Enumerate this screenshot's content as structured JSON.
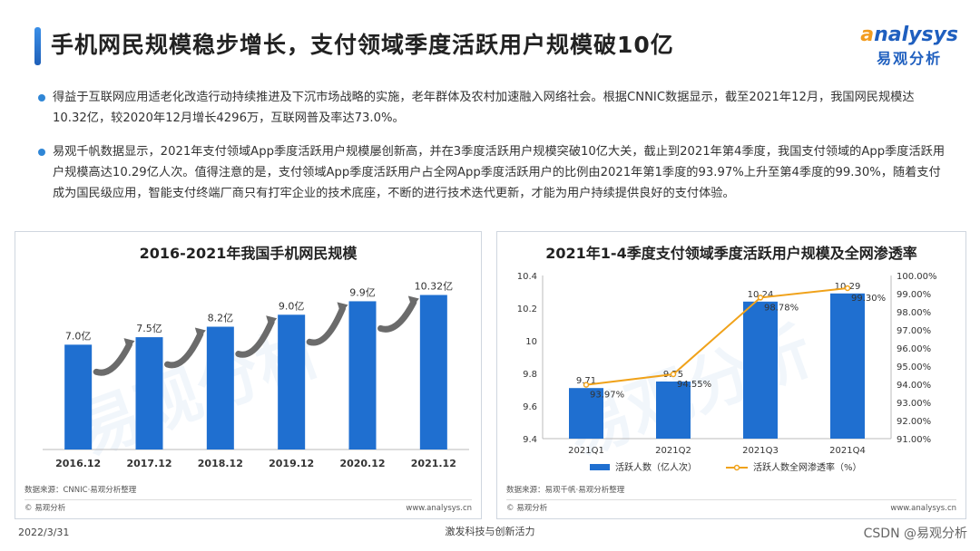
{
  "header": {
    "title": "手机网民规模稳步增长，支付领域季度活跃用户规模破10亿",
    "logo_en_a": "a",
    "logo_en_rest": "nalysys",
    "logo_cn": "易观分析"
  },
  "body": {
    "paragraph1": "得益于互联网应用适老化改造行动持续推进及下沉市场战略的实施，老年群体及农村加速融入网络社会。根据CNNIC数据显示，截至2021年12月，我国网民规模达10.32亿，较2020年12月增长4296万，互联网普及率达73.0%。",
    "paragraph2": "易观千帆数据显示，2021年支付领域App季度活跃用户规模屡创新高，并在3季度活跃用户规模突破10亿大关，截止到2021年第4季度，我国支付领域的App季度活跃用户规模高达10.29亿人次。值得注意的是，支付领域App季度活跃用户占全网App季度活跃用户的比例由2021年第1季度的93.97%上升至第4季度的99.30%，随着支付成为国民级应用，智能支付终端厂商只有打牢企业的技术底座，不断的进行技术迭代更新，才能为用户持续提供良好的支付体验。"
  },
  "left_panel": {
    "source": "数据来源：CNNIC·易观分析整理",
    "copyright": "© 易观分析",
    "url": "www.analysys.cn",
    "watermark": "易观分析"
  },
  "right_panel": {
    "source": "数据来源：易观千帆·易观分析整理",
    "copyright": "© 易观分析",
    "url": "www.analysys.cn",
    "watermark": "易观分析"
  },
  "footer": {
    "date": "2022/3/31",
    "slogan": "激发科技与创新活力",
    "csdn": "CSDN @易观分析"
  },
  "colors": {
    "bar": "#1f6fd0",
    "line": "#f0a21a",
    "arrow": "#6b6b6b"
  },
  "chart_data": [
    {
      "type": "bar",
      "title": "2016-2021年我国手机网民规模",
      "categories": [
        "2016.12",
        "2017.12",
        "2018.12",
        "2019.12",
        "2020.12",
        "2021.12"
      ],
      "values": [
        7.0,
        7.5,
        8.2,
        9.0,
        9.9,
        10.32
      ],
      "value_labels": [
        "7.0亿",
        "7.5亿",
        "8.2亿",
        "9.0亿",
        "9.9亿",
        "10.32亿"
      ],
      "ylim": [
        0,
        11.5
      ]
    },
    {
      "type": "bar+line",
      "title": "2021年1-4季度支付领域季度活跃用户规模及全网渗透率",
      "categories": [
        "2021Q1",
        "2021Q2",
        "2021Q3",
        "2021Q4"
      ],
      "series": [
        {
          "name": "活跃人数（亿人次）",
          "type": "bar",
          "axis": "left",
          "values": [
            9.71,
            9.75,
            10.24,
            10.29
          ],
          "labels": [
            "9.71",
            "9.75",
            "10.24",
            "10.29"
          ]
        },
        {
          "name": "活跃人数全网渗透率（%）",
          "type": "line",
          "axis": "right",
          "values": [
            93.97,
            94.55,
            98.78,
            99.3
          ],
          "labels": [
            "93.97%",
            "94.55%",
            "98.78%",
            "99.30%"
          ]
        }
      ],
      "left_ylim": [
        9.4,
        10.4
      ],
      "left_ticks": [
        "9.4",
        "9.6",
        "9.8",
        "10",
        "10.2",
        "10.4"
      ],
      "right_ylim": [
        91,
        100
      ],
      "right_ticks": [
        "91.00%",
        "92.00%",
        "93.00%",
        "94.00%",
        "95.00%",
        "96.00%",
        "97.00%",
        "98.00%",
        "99.00%",
        "100.00%"
      ],
      "legend": "bottom"
    }
  ]
}
